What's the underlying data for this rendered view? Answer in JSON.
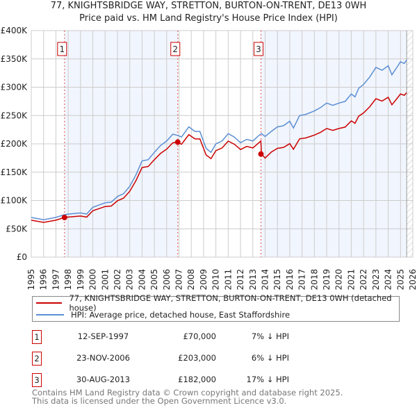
{
  "title": "77, KNIGHTSBRIDGE WAY, STRETTON, BURTON-ON-TRENT, DE13 0WH",
  "subtitle": "Price paid vs. HM Land Registry's House Price Index (HPI)",
  "chart_data": {
    "type": "line",
    "title": "77, KNIGHTSBRIDGE WAY, STRETTON, BURTON-ON-TRENT, DE13 0WH",
    "xlim": [
      1995,
      2026
    ],
    "ylim": [
      0,
      400000
    ],
    "x_ticks": [
      1995,
      1996,
      1997,
      1998,
      1999,
      2000,
      2001,
      2002,
      2003,
      2004,
      2005,
      2006,
      2007,
      2008,
      2009,
      2010,
      2011,
      2012,
      2013,
      2014,
      2015,
      2016,
      2017,
      2018,
      2019,
      2020,
      2021,
      2022,
      2023,
      2024,
      2025,
      2026
    ],
    "y_ticks": [
      0,
      50000,
      100000,
      150000,
      200000,
      250000,
      300000,
      350000,
      400000
    ],
    "y_tick_labels": [
      "£0",
      "£50K",
      "£100K",
      "£150K",
      "£200K",
      "£250K",
      "£300K",
      "£350K",
      "£400K"
    ],
    "grid": true,
    "series": [
      {
        "name": "77, KNIGHTSBRIDGE WAY, STRETTON, BURTON-ON-TRENT, DE13 0WH (detached house)",
        "color": "#cc0000",
        "x": [
          1995,
          1996,
          1997,
          1997.7,
          1998,
          1999,
          1999.5,
          2000,
          2001,
          2001.5,
          2002,
          2002.5,
          2003,
          2003.5,
          2004,
          2004.5,
          2005,
          2005.5,
          2006,
          2006.5,
          2006.9,
          2007.2,
          2007.8,
          2008.3,
          2008.7,
          2009.2,
          2009.6,
          2010,
          2010.5,
          2011,
          2011.5,
          2012,
          2012.5,
          2013,
          2013.5,
          2013.65,
          2013.7,
          2014,
          2014.5,
          2015,
          2015.5,
          2016,
          2016.3,
          2016.8,
          2017.3,
          2018,
          2018.5,
          2019,
          2019.5,
          2020,
          2020.5,
          2021,
          2021.3,
          2021.6,
          2022,
          2022.5,
          2023,
          2023.5,
          2024,
          2024.3,
          2024.7,
          2025,
          2025.3,
          2025.5
        ],
        "y": [
          65100,
          61400,
          65100,
          70000,
          70700,
          72500,
          70700,
          81800,
          89300,
          90200,
          99500,
          104200,
          116300,
          134900,
          158100,
          160000,
          172000,
          183200,
          190700,
          201800,
          203000,
          199300,
          216200,
          208700,
          208700,
          180500,
          173900,
          188000,
          192700,
          204900,
          199300,
          189900,
          195500,
          192700,
          202100,
          205000,
          182000,
          175000,
          185400,
          192000,
          193700,
          200400,
          190400,
          208800,
          210400,
          215400,
          220400,
          227100,
          223800,
          227100,
          229600,
          240500,
          236300,
          248800,
          254700,
          265500,
          279700,
          275600,
          282200,
          268900,
          279700,
          288100,
          285600,
          290600
        ]
      },
      {
        "name": "HPI: Average price, detached house, East Staffordshire",
        "color": "#5b8fd4",
        "x": [
          1995,
          1996,
          1997,
          1997.7,
          1998,
          1999,
          1999.5,
          2000,
          2001,
          2001.5,
          2002,
          2002.5,
          2003,
          2003.5,
          2004,
          2004.5,
          2005,
          2005.5,
          2006,
          2006.5,
          2006.9,
          2007.2,
          2007.8,
          2008.3,
          2008.7,
          2009.2,
          2009.6,
          2010,
          2010.5,
          2011,
          2011.5,
          2012,
          2012.5,
          2013,
          2013.5,
          2013.7,
          2014,
          2014.5,
          2015,
          2015.5,
          2016,
          2016.3,
          2016.8,
          2017.3,
          2018,
          2018.5,
          2019,
          2019.5,
          2020,
          2020.5,
          2021,
          2021.3,
          2021.6,
          2022,
          2022.5,
          2023,
          2023.5,
          2024,
          2024.3,
          2024.7,
          2025,
          2025.3,
          2025.5
        ],
        "y": [
          70000,
          66000,
          70000,
          75000,
          76000,
          78000,
          76000,
          88000,
          96000,
          97000,
          107000,
          112000,
          125000,
          145000,
          170000,
          172000,
          185000,
          197000,
          205000,
          217000,
          215000,
          212000,
          230000,
          222000,
          222000,
          192000,
          185000,
          200000,
          205000,
          218000,
          212000,
          202000,
          208000,
          205000,
          215000,
          218000,
          213000,
          222000,
          230000,
          232000,
          240000,
          228000,
          250000,
          252000,
          258000,
          264000,
          272000,
          268000,
          272000,
          275000,
          288000,
          283000,
          298000,
          305000,
          318000,
          335000,
          330000,
          338000,
          322000,
          335000,
          345000,
          342000,
          348000
        ]
      }
    ],
    "sales": [
      {
        "label": "1",
        "x": 1997.7,
        "y": 70000
      },
      {
        "label": "2",
        "x": 2006.9,
        "y": 203000
      },
      {
        "label": "3",
        "x": 2013.66,
        "y": 182000
      }
    ],
    "forecast_from": 2025.5,
    "legend_placement": "below"
  },
  "legend": {
    "items": [
      {
        "label": "77, KNIGHTSBRIDGE WAY, STRETTON, BURTON-ON-TRENT, DE13 0WH (detached house)",
        "color": "#cc0000"
      },
      {
        "label": "HPI: Average price, detached house, East Staffordshire",
        "color": "#5b8fd4"
      }
    ]
  },
  "transactions": [
    {
      "num": "1",
      "date": "12-SEP-1997",
      "price": "£70,000",
      "hpi": "7% ↓ HPI"
    },
    {
      "num": "2",
      "date": "23-NOV-2006",
      "price": "£203,000",
      "hpi": "6% ↓ HPI"
    },
    {
      "num": "3",
      "date": "30-AUG-2013",
      "price": "£182,000",
      "hpi": "17% ↓ HPI"
    }
  ],
  "footer": {
    "line1": "Contains HM Land Registry data © Crown copyright and database right 2025.",
    "line2": "This data is licensed under the Open Government Licence v3.0."
  }
}
